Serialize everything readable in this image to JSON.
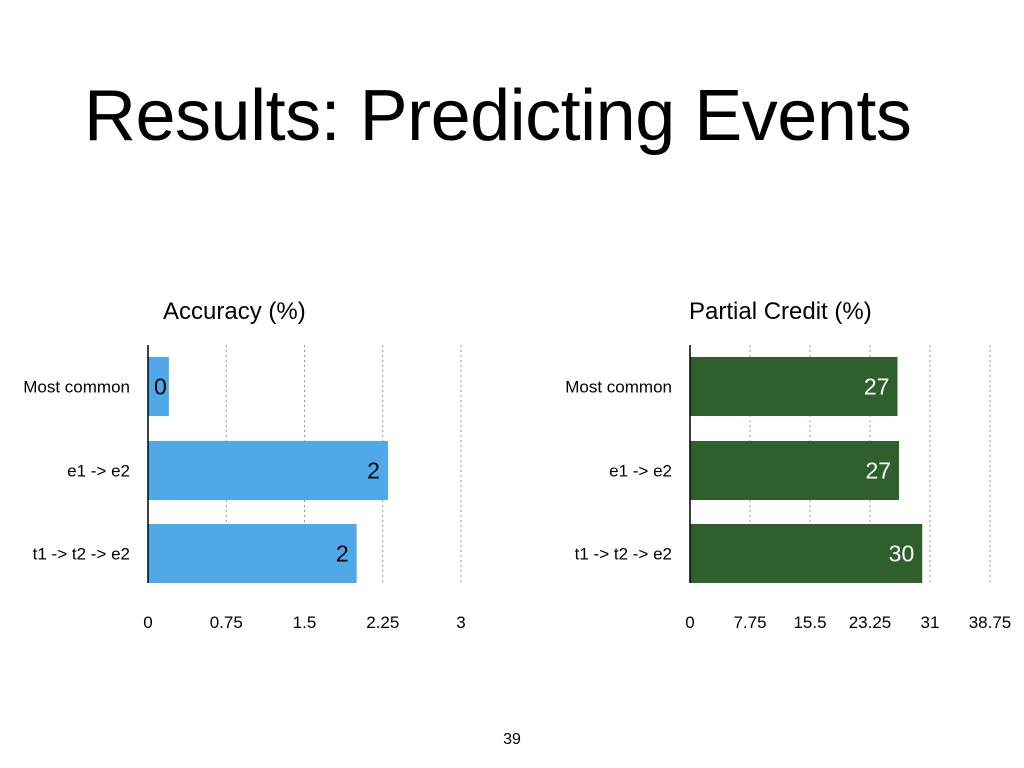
{
  "slide": {
    "title": "Results: Predicting Events",
    "page_number": "39"
  },
  "colors": {
    "accuracy_bar": "#4FA9E9",
    "partial_credit_bar": "#2F5F2C",
    "grid": "#9a9a9a",
    "axis": "#000000"
  },
  "chart_data": [
    {
      "type": "bar",
      "orientation": "horizontal",
      "title": "Accuracy (%)",
      "categories": [
        "Most common",
        "e1 -> e2",
        "t1 -> t2 -> e2"
      ],
      "values": [
        0.2,
        2.3,
        2.0
      ],
      "data_labels": [
        "0",
        "2",
        "2"
      ],
      "xlim": [
        0,
        3
      ],
      "x_ticks": [
        "0",
        "0.75",
        "1.5",
        "2.25",
        "3"
      ],
      "grid": true,
      "color": "#4FA9E9",
      "label_color": "#000000"
    },
    {
      "type": "bar",
      "orientation": "horizontal",
      "title": "Partial Credit (%)",
      "categories": [
        "Most common",
        "e1 -> e2",
        "t1 -> t2 -> e2"
      ],
      "values": [
        26.8,
        27.0,
        30.0
      ],
      "data_labels": [
        "27",
        "27",
        "30"
      ],
      "xlim": [
        0,
        38.75
      ],
      "x_ticks": [
        "0",
        "7.75",
        "15.5",
        "23.25",
        "31",
        "38.75"
      ],
      "grid": true,
      "color": "#2F5F2C",
      "label_color": "#ffffff"
    }
  ]
}
